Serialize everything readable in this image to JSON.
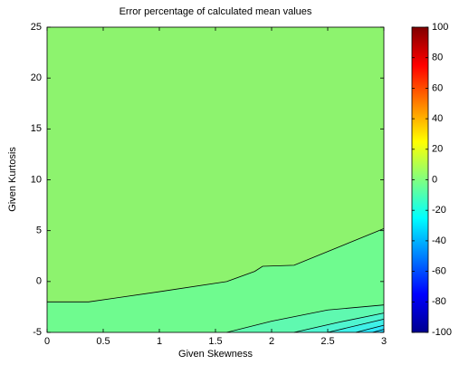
{
  "chart_data": {
    "type": "contour",
    "title": "Error percentage of calculated mean values",
    "x_label": "Given Skewness",
    "y_label": "Given Kurtosis",
    "xlim": [
      0,
      3
    ],
    "xticks": [
      0,
      0.5,
      1,
      1.5,
      2,
      2.5,
      3
    ],
    "ylim": [
      -5,
      25
    ],
    "yticks": [
      -5,
      0,
      5,
      10,
      15,
      20,
      25
    ],
    "background_color": "#8df36e",
    "levels": [
      {
        "color": "#6ffb8f",
        "x": [
          0,
          0.37,
          1.0,
          1.6,
          1.85,
          1.92,
          2.2,
          3
        ],
        "y": [
          -2,
          -2,
          -1,
          0,
          1,
          1.5,
          1.6,
          5.2
        ]
      },
      {
        "color": "#5ff9b0",
        "x": [
          1.6,
          2.0,
          2.5,
          3
        ],
        "y": [
          -5,
          -3.9,
          -2.8,
          -2.3
        ]
      },
      {
        "color": "#4ff5d0",
        "x": [
          2.2,
          2.6,
          3
        ],
        "y": [
          -5,
          -4,
          -3.1
        ]
      },
      {
        "color": "#3ff0e8",
        "x": [
          2.5,
          3
        ],
        "y": [
          -5,
          -3.7
        ]
      },
      {
        "color": "#2fe8ff",
        "x": [
          2.75,
          3
        ],
        "y": [
          -5,
          -4.3
        ]
      },
      {
        "color": "#22d8ff",
        "x": [
          2.9,
          3
        ],
        "y": [
          -5,
          -4.7
        ]
      }
    ],
    "colormap": "jet",
    "clim": [
      -100,
      100
    ],
    "cticks": [
      -100,
      -80,
      -60,
      -40,
      -20,
      0,
      20,
      40,
      60,
      80,
      100
    ]
  }
}
